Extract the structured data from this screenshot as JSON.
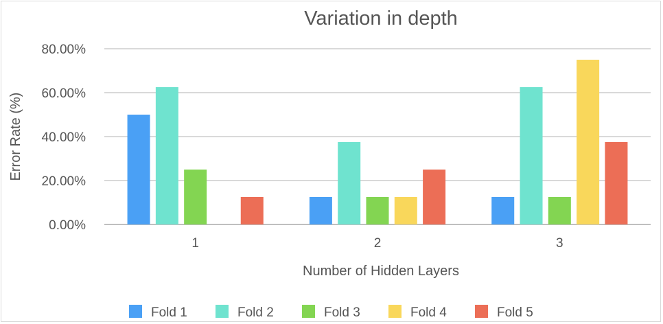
{
  "chart_data": {
    "type": "bar",
    "title": "Variation in depth",
    "xlabel": "Number of Hidden Layers",
    "ylabel": "Error Rate (%)",
    "categories": [
      "1",
      "2",
      "3"
    ],
    "yticks": [
      "0.00%",
      "20.00%",
      "40.00%",
      "60.00%",
      "80.00%"
    ],
    "ylim": [
      0,
      80
    ],
    "grid": true,
    "legend_position": "bottom",
    "series": [
      {
        "name": "Fold 1",
        "color": "#4aa0f5",
        "values": [
          50,
          12.5,
          12.5
        ]
      },
      {
        "name": "Fold 2",
        "color": "#6fe3cf",
        "values": [
          62.5,
          37.5,
          62.5
        ]
      },
      {
        "name": "Fold 3",
        "color": "#83d552",
        "values": [
          25,
          12.5,
          12.5
        ]
      },
      {
        "name": "Fold 4",
        "color": "#f9d75b",
        "values": [
          0,
          12.5,
          75
        ]
      },
      {
        "name": "Fold 5",
        "color": "#ec6e56",
        "values": [
          12.5,
          25,
          37.5
        ]
      }
    ]
  }
}
